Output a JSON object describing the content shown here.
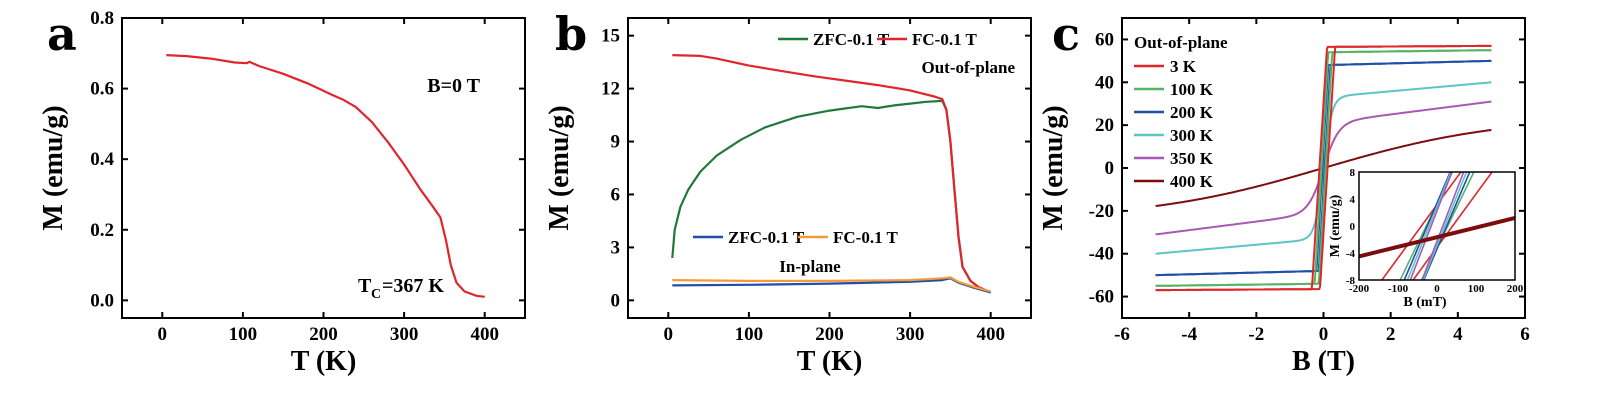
{
  "chart_data": [
    {
      "panel": "a",
      "type": "line",
      "xlabel": "T (K)",
      "ylabel": "M (emu/g)",
      "xlim": [
        -50,
        450
      ],
      "ylim": [
        -0.05,
        0.8
      ],
      "xticks": [
        0,
        100,
        200,
        300,
        400
      ],
      "yticks": [
        0.0,
        0.2,
        0.4,
        0.6,
        0.8
      ],
      "yticklabels": [
        "0.0",
        "0.2",
        "0.4",
        "0.6",
        "0.8"
      ],
      "annotations": [
        "B=0 T",
        "T",
        "C",
        "=367 K"
      ],
      "series": [
        {
          "color": "#e0262b",
          "x": [
            5,
            30,
            60,
            90,
            105,
            108,
            120,
            150,
            180,
            210,
            225,
            240,
            260,
            280,
            300,
            320,
            335,
            345,
            352,
            358,
            365,
            375,
            390,
            400
          ],
          "y": [
            0.695,
            0.692,
            0.685,
            0.674,
            0.672,
            0.676,
            0.664,
            0.642,
            0.615,
            0.583,
            0.568,
            0.548,
            0.505,
            0.448,
            0.385,
            0.315,
            0.268,
            0.235,
            0.17,
            0.1,
            0.05,
            0.025,
            0.013,
            0.01
          ]
        }
      ]
    },
    {
      "panel": "b",
      "type": "line",
      "xlabel": "T (K)",
      "ylabel": "M (emu/g)",
      "xlim": [
        -50,
        450
      ],
      "ylim": [
        -1,
        16
      ],
      "xticks": [
        0,
        100,
        200,
        300,
        400
      ],
      "yticks": [
        0,
        3,
        6,
        9,
        12,
        15
      ],
      "annotations": [
        "Out-of-plane",
        "In-plane"
      ],
      "series": [
        {
          "name": "ZFC-0.1 T",
          "group": "Out-of-plane",
          "color": "#1f7a3a",
          "x": [
            5,
            8,
            15,
            25,
            40,
            60,
            90,
            120,
            160,
            200,
            240,
            260,
            280,
            300,
            320,
            340,
            345,
            350,
            355,
            360,
            365,
            375,
            385,
            395,
            400
          ],
          "y": [
            2.4,
            4.0,
            5.3,
            6.3,
            7.3,
            8.2,
            9.1,
            9.8,
            10.4,
            10.75,
            11.0,
            10.9,
            11.05,
            11.15,
            11.25,
            11.3,
            10.8,
            9.0,
            6.3,
            3.6,
            1.9,
            1.1,
            0.75,
            0.55,
            0.45
          ]
        },
        {
          "name": "FC-0.1 T",
          "group": "Out-of-plane",
          "color": "#e0262b",
          "x": [
            5,
            40,
            60,
            100,
            140,
            180,
            220,
            260,
            300,
            330,
            340,
            345,
            350,
            355,
            360,
            365,
            375,
            385,
            395,
            400
          ],
          "y": [
            13.9,
            13.85,
            13.7,
            13.3,
            13.0,
            12.7,
            12.45,
            12.2,
            11.9,
            11.55,
            11.4,
            10.8,
            9.0,
            6.3,
            3.6,
            1.9,
            1.1,
            0.75,
            0.55,
            0.45
          ]
        },
        {
          "name": "ZFC-0.1 T",
          "group": "In-plane",
          "color": "#1f4fa8",
          "x": [
            5,
            100,
            200,
            300,
            340,
            350,
            360,
            380,
            400
          ],
          "y": [
            0.85,
            0.88,
            0.95,
            1.05,
            1.15,
            1.25,
            1.0,
            0.7,
            0.45
          ]
        },
        {
          "name": "FC-0.1 T",
          "group": "In-plane",
          "color": "#f39b3a",
          "x": [
            5,
            100,
            200,
            300,
            340,
            350,
            360,
            380,
            400
          ],
          "y": [
            1.15,
            1.1,
            1.1,
            1.15,
            1.25,
            1.3,
            1.05,
            0.75,
            0.5
          ]
        }
      ]
    },
    {
      "panel": "c",
      "type": "line",
      "xlabel": "B (T)",
      "ylabel": "M (emu/g)",
      "xlim": [
        -6,
        6
      ],
      "ylim": [
        -70,
        70
      ],
      "xticks": [
        -6,
        -4,
        -2,
        0,
        2,
        4,
        6
      ],
      "yticks": [
        -60,
        -40,
        -20,
        0,
        20,
        40,
        60
      ],
      "legend_title": "Out-of-plane",
      "legend_position": "top-left",
      "series": [
        {
          "name": "3 K",
          "color": "#e0262b",
          "type": "loop",
          "ms": 56.5,
          "slope": 0.1,
          "hc": 0.12,
          "width": 0.45
        },
        {
          "name": "100 K",
          "color": "#55b567",
          "type": "loop",
          "ms": 54,
          "slope": 0.2,
          "hc": 0.06,
          "width": 0.4
        },
        {
          "name": "200 K",
          "color": "#1f4fa8",
          "type": "loop",
          "ms": 48,
          "slope": 0.4,
          "hc": 0.035,
          "width": 0.35
        },
        {
          "name": "300 K",
          "color": "#5fc4c8",
          "type": "sat",
          "ms": 33,
          "slope": 1.4,
          "k": 4.0
        },
        {
          "name": "350 K",
          "color": "#a959b3",
          "type": "sat",
          "ms": 21,
          "slope": 2.0,
          "k": 2.2
        },
        {
          "name": "400 K",
          "color": "#7a0e0e",
          "type": "tanh",
          "a": 24,
          "k": 0.19
        }
      ],
      "inset": {
        "xlabel": "B (mT)",
        "ylabel": "M (emu/g)",
        "xlim": [
          -200,
          200
        ],
        "ylim": [
          -8,
          8
        ],
        "xticks": [
          -200,
          -100,
          0,
          100,
          200
        ],
        "yticks": [
          -8,
          -4,
          0,
          4,
          8
        ]
      }
    }
  ]
}
